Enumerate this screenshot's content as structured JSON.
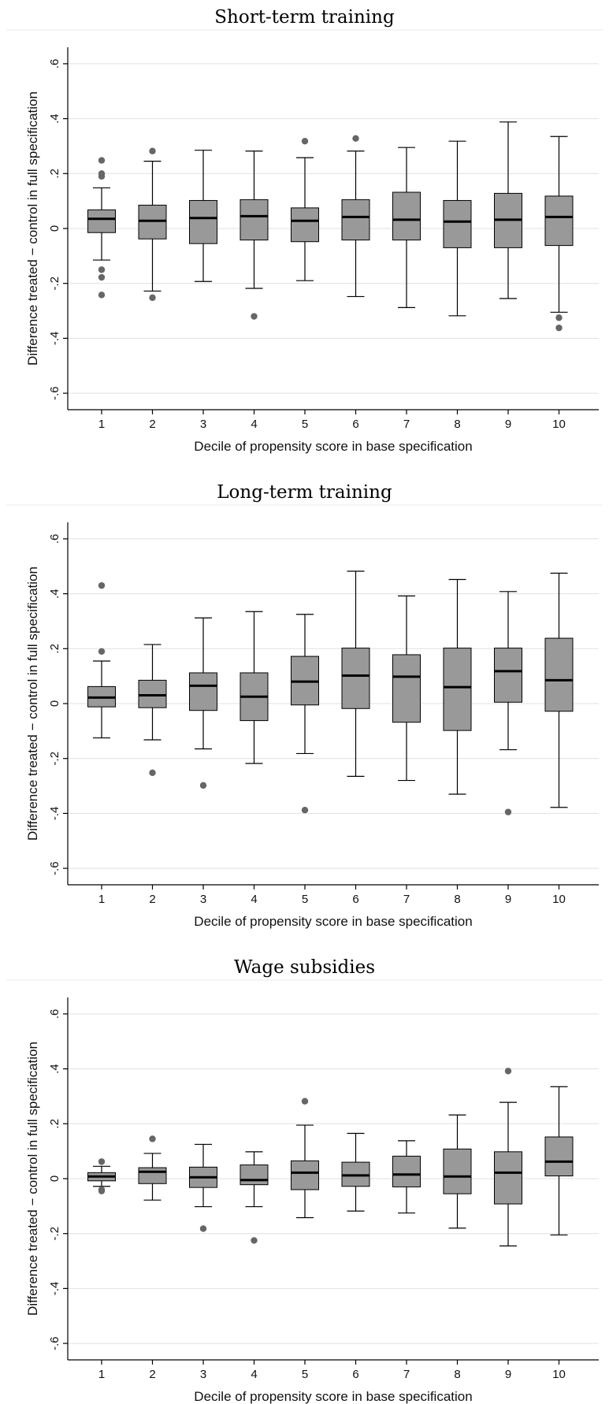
{
  "colors": {
    "box_fill": "#999999",
    "stroke": "#000000",
    "outlier": "#666666",
    "grid": "#e0e0e0",
    "background": "#ffffff"
  },
  "chart_data": [
    {
      "type": "box",
      "title": "Short-term training",
      "xlabel": "Decile of propensity score in base specification",
      "ylabel": "Difference treated − control in full specification",
      "ylim": [
        -0.66,
        0.66
      ],
      "yticks": [
        -0.6,
        -0.4,
        -0.2,
        0,
        0.2,
        0.4,
        0.6
      ],
      "ytick_labels": [
        "-.6",
        "-.4",
        "-.2",
        "0",
        ".2",
        ".4",
        ".6"
      ],
      "grid": true,
      "categories": [
        "1",
        "2",
        "3",
        "4",
        "5",
        "6",
        "7",
        "8",
        "9",
        "10"
      ],
      "boxes": [
        {
          "whisker_low": -0.115,
          "q1": -0.015,
          "median": 0.035,
          "q3": 0.068,
          "whisker_high": 0.148,
          "outliers": [
            0.248,
            0.2,
            0.19,
            -0.15,
            -0.178,
            -0.242
          ]
        },
        {
          "whisker_low": -0.228,
          "q1": -0.038,
          "median": 0.028,
          "q3": 0.085,
          "whisker_high": 0.245,
          "outliers": [
            0.282,
            -0.252
          ]
        },
        {
          "whisker_low": -0.193,
          "q1": -0.055,
          "median": 0.038,
          "q3": 0.102,
          "whisker_high": 0.285,
          "outliers": []
        },
        {
          "whisker_low": -0.218,
          "q1": -0.042,
          "median": 0.045,
          "q3": 0.105,
          "whisker_high": 0.282,
          "outliers": [
            -0.32
          ]
        },
        {
          "whisker_low": -0.19,
          "q1": -0.048,
          "median": 0.028,
          "q3": 0.075,
          "whisker_high": 0.258,
          "outliers": [
            0.318
          ]
        },
        {
          "whisker_low": -0.248,
          "q1": -0.042,
          "median": 0.042,
          "q3": 0.105,
          "whisker_high": 0.282,
          "outliers": [
            0.328
          ]
        },
        {
          "whisker_low": -0.288,
          "q1": -0.042,
          "median": 0.032,
          "q3": 0.132,
          "whisker_high": 0.295,
          "outliers": []
        },
        {
          "whisker_low": -0.318,
          "q1": -0.07,
          "median": 0.025,
          "q3": 0.102,
          "whisker_high": 0.318,
          "outliers": []
        },
        {
          "whisker_low": -0.255,
          "q1": -0.07,
          "median": 0.032,
          "q3": 0.128,
          "whisker_high": 0.388,
          "outliers": []
        },
        {
          "whisker_low": -0.305,
          "q1": -0.062,
          "median": 0.042,
          "q3": 0.118,
          "whisker_high": 0.335,
          "outliers": [
            -0.325,
            -0.362
          ]
        }
      ]
    },
    {
      "type": "box",
      "title": "Long-term training",
      "xlabel": "Decile of propensity score in base specification",
      "ylabel": "Difference treated − control in full specification",
      "ylim": [
        -0.66,
        0.66
      ],
      "yticks": [
        -0.6,
        -0.4,
        -0.2,
        0,
        0.2,
        0.4,
        0.6
      ],
      "ytick_labels": [
        "-.6",
        "-.4",
        "-.2",
        "0",
        ".2",
        ".4",
        ".6"
      ],
      "grid": true,
      "categories": [
        "1",
        "2",
        "3",
        "4",
        "5",
        "6",
        "7",
        "8",
        "9",
        "10"
      ],
      "boxes": [
        {
          "whisker_low": -0.125,
          "q1": -0.012,
          "median": 0.022,
          "q3": 0.062,
          "whisker_high": 0.155,
          "outliers": [
            0.43,
            0.19
          ]
        },
        {
          "whisker_low": -0.132,
          "q1": -0.015,
          "median": 0.03,
          "q3": 0.085,
          "whisker_high": 0.215,
          "outliers": [
            -0.252
          ]
        },
        {
          "whisker_low": -0.165,
          "q1": -0.025,
          "median": 0.065,
          "q3": 0.112,
          "whisker_high": 0.312,
          "outliers": [
            -0.298
          ]
        },
        {
          "whisker_low": -0.218,
          "q1": -0.062,
          "median": 0.025,
          "q3": 0.112,
          "whisker_high": 0.335,
          "outliers": []
        },
        {
          "whisker_low": -0.182,
          "q1": -0.005,
          "median": 0.08,
          "q3": 0.172,
          "whisker_high": 0.325,
          "outliers": [
            -0.388
          ]
        },
        {
          "whisker_low": -0.265,
          "q1": -0.018,
          "median": 0.102,
          "q3": 0.202,
          "whisker_high": 0.482,
          "outliers": []
        },
        {
          "whisker_low": -0.28,
          "q1": -0.068,
          "median": 0.098,
          "q3": 0.178,
          "whisker_high": 0.392,
          "outliers": []
        },
        {
          "whisker_low": -0.33,
          "q1": -0.098,
          "median": 0.06,
          "q3": 0.202,
          "whisker_high": 0.452,
          "outliers": []
        },
        {
          "whisker_low": -0.168,
          "q1": 0.005,
          "median": 0.118,
          "q3": 0.202,
          "whisker_high": 0.408,
          "outliers": [
            -0.395
          ]
        },
        {
          "whisker_low": -0.378,
          "q1": -0.028,
          "median": 0.085,
          "q3": 0.238,
          "whisker_high": 0.475,
          "outliers": []
        }
      ]
    },
    {
      "type": "box",
      "title": "Wage subsidies",
      "xlabel": "Decile of propensity score in base specification",
      "ylabel": "Difference treated − control in full specification",
      "ylim": [
        -0.66,
        0.66
      ],
      "yticks": [
        -0.6,
        -0.4,
        -0.2,
        0,
        0.2,
        0.4,
        0.6
      ],
      "ytick_labels": [
        "-.6",
        "-.4",
        "-.2",
        "0",
        ".2",
        ".4",
        ".6"
      ],
      "grid": true,
      "categories": [
        "1",
        "2",
        "3",
        "4",
        "5",
        "6",
        "7",
        "8",
        "9",
        "10"
      ],
      "boxes": [
        {
          "whisker_low": -0.028,
          "q1": -0.008,
          "median": 0.008,
          "q3": 0.022,
          "whisker_high": 0.045,
          "outliers": [
            0.062,
            -0.04,
            -0.045
          ]
        },
        {
          "whisker_low": -0.078,
          "q1": -0.018,
          "median": 0.025,
          "q3": 0.04,
          "whisker_high": 0.092,
          "outliers": [
            0.145
          ]
        },
        {
          "whisker_low": -0.102,
          "q1": -0.032,
          "median": 0.005,
          "q3": 0.042,
          "whisker_high": 0.125,
          "outliers": [
            -0.182
          ]
        },
        {
          "whisker_low": -0.102,
          "q1": -0.022,
          "median": -0.005,
          "q3": 0.05,
          "whisker_high": 0.098,
          "outliers": [
            -0.225
          ]
        },
        {
          "whisker_low": -0.142,
          "q1": -0.04,
          "median": 0.022,
          "q3": 0.065,
          "whisker_high": 0.195,
          "outliers": [
            0.282
          ]
        },
        {
          "whisker_low": -0.118,
          "q1": -0.028,
          "median": 0.012,
          "q3": 0.06,
          "whisker_high": 0.165,
          "outliers": []
        },
        {
          "whisker_low": -0.125,
          "q1": -0.03,
          "median": 0.015,
          "q3": 0.082,
          "whisker_high": 0.138,
          "outliers": []
        },
        {
          "whisker_low": -0.18,
          "q1": -0.055,
          "median": 0.008,
          "q3": 0.108,
          "whisker_high": 0.232,
          "outliers": []
        },
        {
          "whisker_low": -0.245,
          "q1": -0.092,
          "median": 0.022,
          "q3": 0.098,
          "whisker_high": 0.278,
          "outliers": [
            0.392
          ]
        },
        {
          "whisker_low": -0.205,
          "q1": 0.01,
          "median": 0.062,
          "q3": 0.152,
          "whisker_high": 0.335,
          "outliers": []
        }
      ]
    }
  ]
}
